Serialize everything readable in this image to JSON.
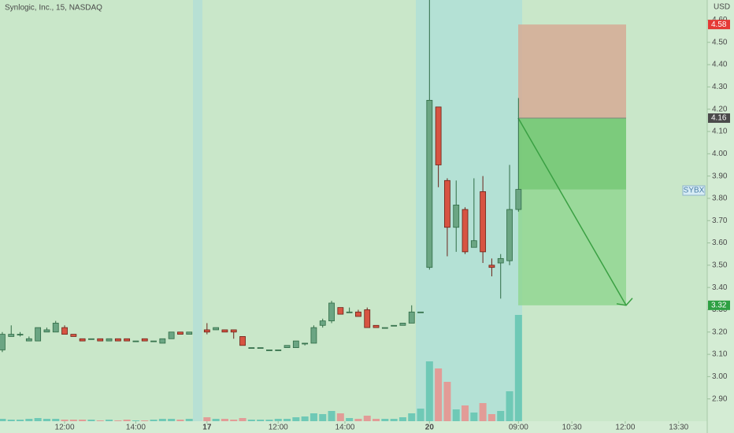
{
  "chart_data": {
    "type": "candlestick",
    "title": "Synlogic, Inc., 15, NASDAQ",
    "currency": "USD",
    "symbol_label": "SYBX",
    "ylim": [
      2.8,
      4.69
    ],
    "xlim": [
      -0.26,
      79.21
    ],
    "yticks": [
      {
        "value": 2.9,
        "label": "2.90"
      },
      {
        "value": 3.0,
        "label": "3.00"
      },
      {
        "value": 3.1,
        "label": "3.10"
      },
      {
        "value": 3.2,
        "label": "3.20"
      },
      {
        "value": 3.3,
        "label": "3.30"
      },
      {
        "value": 3.4,
        "label": "3.40"
      },
      {
        "value": 3.5,
        "label": "3.50"
      },
      {
        "value": 3.6,
        "label": "3.60"
      },
      {
        "value": 3.7,
        "label": "3.70"
      },
      {
        "value": 3.8,
        "label": "3.80"
      },
      {
        "value": 3.9,
        "label": "3.90"
      },
      {
        "value": 4.0,
        "label": "4.00"
      },
      {
        "value": 4.1,
        "label": "4.10"
      },
      {
        "value": 4.2,
        "label": "4.20"
      },
      {
        "value": 4.3,
        "label": "4.30"
      },
      {
        "value": 4.4,
        "label": "4.40"
      },
      {
        "value": 4.5,
        "label": "4.50"
      },
      {
        "value": 4.6,
        "label": "4.60"
      }
    ],
    "xticks": [
      {
        "value": 7,
        "label": "12:00"
      },
      {
        "value": 15,
        "label": "14:00"
      },
      {
        "value": 23,
        "label": "17"
      },
      {
        "value": 31,
        "label": "12:00"
      },
      {
        "value": 38.5,
        "label": "14:00"
      },
      {
        "value": 48,
        "label": "20"
      },
      {
        "value": 58,
        "label": "09:00"
      },
      {
        "value": 64,
        "label": "10:30"
      },
      {
        "value": 70,
        "label": "12:00"
      },
      {
        "value": 76,
        "label": "13:30"
      }
    ],
    "up_color": "#6ba583",
    "down_color": "#d75442",
    "candles": {
      "x": [
        0,
        1,
        2,
        3,
        4,
        5,
        6,
        7,
        8,
        9,
        10,
        11,
        12,
        13,
        14,
        15,
        16,
        17,
        18,
        19,
        20,
        21,
        23,
        24,
        25,
        26,
        27,
        28,
        29,
        30,
        31,
        32,
        33,
        34,
        35,
        36,
        37,
        38,
        39,
        40,
        41,
        42,
        43,
        44,
        45,
        46,
        47,
        48,
        49,
        50,
        51,
        52,
        53,
        54,
        55,
        56,
        57,
        58
      ],
      "open": [
        3.12,
        3.18,
        3.19,
        3.16,
        3.16,
        3.2,
        3.2,
        3.22,
        3.19,
        3.17,
        3.17,
        3.17,
        3.16,
        3.17,
        3.17,
        3.16,
        3.17,
        3.16,
        3.15,
        3.17,
        3.2,
        3.19,
        3.21,
        3.21,
        3.21,
        3.21,
        3.18,
        3.13,
        3.13,
        3.12,
        3.12,
        3.13,
        3.13,
        3.15,
        3.15,
        3.23,
        3.25,
        3.31,
        3.29,
        3.29,
        3.3,
        3.23,
        3.22,
        3.23,
        3.23,
        3.24,
        3.29,
        3.49,
        4.21,
        3.88,
        3.67,
        3.75,
        3.58,
        3.83,
        3.5,
        3.51,
        3.52,
        3.75
      ],
      "high": [
        3.2,
        3.23,
        3.2,
        3.18,
        3.22,
        3.22,
        3.25,
        3.23,
        3.19,
        3.17,
        3.17,
        3.17,
        3.17,
        3.17,
        3.17,
        3.16,
        3.17,
        3.16,
        3.17,
        3.2,
        3.2,
        3.2,
        3.24,
        3.22,
        3.21,
        3.21,
        3.18,
        3.13,
        3.13,
        3.12,
        3.12,
        3.14,
        3.16,
        3.15,
        3.23,
        3.26,
        3.34,
        3.31,
        3.31,
        3.3,
        3.31,
        3.23,
        3.22,
        3.23,
        3.24,
        3.32,
        3.29,
        4.69,
        4.21,
        3.89,
        3.88,
        3.76,
        3.89,
        3.9,
        3.53,
        3.55,
        3.95,
        4.25
      ],
      "low": [
        3.11,
        3.18,
        3.18,
        3.16,
        3.16,
        3.2,
        3.2,
        3.19,
        3.18,
        3.16,
        3.17,
        3.16,
        3.16,
        3.16,
        3.16,
        3.16,
        3.16,
        3.16,
        3.15,
        3.17,
        3.19,
        3.19,
        3.19,
        3.21,
        3.2,
        3.17,
        3.14,
        3.13,
        3.13,
        3.12,
        3.12,
        3.13,
        3.13,
        3.14,
        3.15,
        3.22,
        3.24,
        3.28,
        3.29,
        3.27,
        3.22,
        3.22,
        3.22,
        3.23,
        3.23,
        3.24,
        3.29,
        3.48,
        3.85,
        3.54,
        3.56,
        3.55,
        3.58,
        3.51,
        3.45,
        3.35,
        3.5,
        3.74
      ],
      "close": [
        3.19,
        3.19,
        3.19,
        3.17,
        3.22,
        3.21,
        3.24,
        3.19,
        3.18,
        3.16,
        3.17,
        3.16,
        3.17,
        3.16,
        3.16,
        3.16,
        3.16,
        3.16,
        3.17,
        3.2,
        3.19,
        3.2,
        3.2,
        3.22,
        3.2,
        3.2,
        3.14,
        3.13,
        3.13,
        3.12,
        3.12,
        3.14,
        3.16,
        3.15,
        3.22,
        3.25,
        3.33,
        3.28,
        3.29,
        3.27,
        3.22,
        3.22,
        3.22,
        3.23,
        3.24,
        3.29,
        3.29,
        4.24,
        3.95,
        3.67,
        3.77,
        3.56,
        3.61,
        3.56,
        3.49,
        3.53,
        3.75,
        3.84
      ],
      "volume": [
        3,
        2,
        2,
        3,
        4,
        3,
        3,
        2,
        2,
        2,
        2,
        1,
        2,
        1,
        2,
        1,
        1,
        2,
        3,
        3,
        2,
        3,
        5,
        3,
        3,
        2,
        4,
        2,
        2,
        2,
        3,
        3,
        5,
        6,
        10,
        9,
        13,
        10,
        4,
        3,
        7,
        3,
        3,
        3,
        5,
        10,
        16,
        76,
        67,
        50,
        15,
        20,
        11,
        23,
        9,
        13,
        38,
        135
      ]
    },
    "position_tool": {
      "stop": 4.58,
      "entry": 4.16,
      "target": 3.32,
      "stop_color": "#e53935",
      "entry_color": "#4a4a4a",
      "target_color": "#2ea043"
    }
  }
}
